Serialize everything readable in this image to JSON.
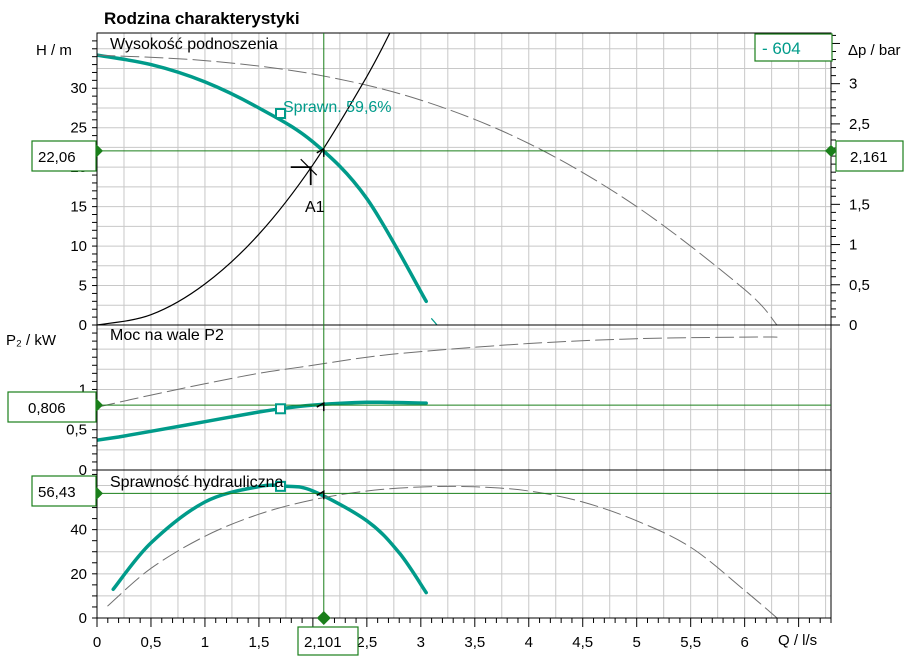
{
  "title": "Rodzina charakterystyki",
  "colors": {
    "pump_curve": "#009b8a",
    "marker": "#1a7f1a",
    "box_border": "#1a7f1a",
    "grid": "#c8c8c8",
    "dashed": "#707070",
    "system": "#000000",
    "label_teal": "#009b8a"
  },
  "readouts": {
    "head_left": "22,06",
    "dp_right": "2,161",
    "power_left": "0,806",
    "eff_left": "56,43",
    "flow_bottom": "2,101",
    "pump_id": "- 604"
  },
  "annotations": {
    "efficiency_label": "Sprawn.  59,6%",
    "operating_point": "A1"
  },
  "chart_data": [
    {
      "type": "line",
      "title": "Wysokość podnoszenia",
      "xlabel": "Q / l/s",
      "ylabel": "H / m",
      "y2label": "Δp / bar",
      "xlim": [
        0,
        6.8
      ],
      "ylim": [
        0,
        37
      ],
      "y2lim": [
        0,
        3.63
      ],
      "x_ticks": [
        "0",
        "0,5",
        "1",
        "1,5",
        "2",
        "2,5",
        "3",
        "3,5",
        "4",
        "4,5",
        "5",
        "5,5",
        "6"
      ],
      "y_ticks": [
        "0",
        "5",
        "10",
        "15",
        "20",
        "25",
        "30"
      ],
      "y_tick_values": [
        0,
        5,
        10,
        15,
        20,
        25,
        30
      ],
      "y2_ticks": [
        "0",
        "0,5",
        "1",
        "1,5",
        "2",
        "2,5",
        "3"
      ],
      "y2_tick_values": [
        0,
        0.5,
        1,
        1.5,
        2,
        2.5,
        3
      ],
      "grid": true,
      "series": [
        {
          "x": [
            0,
            0.5,
            1.0,
            1.5,
            2.0,
            2.5,
            3.05
          ],
          "y": [
            34.2,
            33.0,
            30.8,
            27.5,
            23.2,
            16.0,
            3.0
          ]
        },
        {
          "x": [
            3.1,
            3.15
          ],
          "y": [
            0.8,
            0
          ]
        },
        {
          "x": [
            0,
            1,
            2,
            3,
            4,
            5,
            6,
            6.3
          ],
          "y": [
            34.2,
            33.5,
            31.8,
            28.5,
            23.0,
            15.0,
            4.5,
            0
          ]
        },
        {
          "x": [
            0,
            0.5,
            1.0,
            1.5,
            2.0,
            2.5,
            2.75
          ],
          "y": [
            0,
            1.3,
            5.2,
            11.5,
            20.3,
            31.5,
            38.0
          ]
        }
      ],
      "points": [
        {
          "x": 1.7,
          "y": 26.8,
          "kind": "square"
        },
        {
          "x": 2.101,
          "y": 22.06,
          "kind": "operating"
        }
      ]
    },
    {
      "type": "line",
      "title": "Moc na wale P2",
      "ylabel": "P₂ / kW",
      "xlim": [
        0,
        6.8
      ],
      "ylim": [
        0,
        1.8
      ],
      "y_ticks": [
        "0",
        "0,5",
        "1"
      ],
      "y_tick_values": [
        0,
        0.5,
        1
      ],
      "grid": true,
      "series": [
        {
          "x": [
            0,
            0.2,
            0.5,
            1.0,
            1.5,
            1.7,
            2.0,
            2.5,
            3.05
          ],
          "y": [
            0.37,
            0.41,
            0.48,
            0.6,
            0.72,
            0.76,
            0.806,
            0.84,
            0.83
          ]
        },
        {
          "x": [
            0,
            0.5,
            1,
            1.5,
            2,
            2.5,
            3,
            4,
            5,
            6,
            6.3
          ],
          "y": [
            0.78,
            0.93,
            1.07,
            1.2,
            1.3,
            1.4,
            1.47,
            1.57,
            1.63,
            1.65,
            1.65
          ]
        }
      ],
      "points": [
        {
          "x": 1.7,
          "y": 0.76,
          "kind": "square"
        },
        {
          "x": 2.101,
          "y": 0.806,
          "kind": "operating"
        }
      ]
    },
    {
      "type": "line",
      "title": "Sprawność hydrauliczna",
      "xlim": [
        0,
        6.8
      ],
      "ylim": [
        0,
        67
      ],
      "y_ticks": [
        "0",
        "20",
        "40"
      ],
      "y_tick_values": [
        0,
        20,
        40
      ],
      "grid": true,
      "series": [
        {
          "x": [
            0.15,
            0.5,
            1.0,
            1.5,
            1.75,
            2.0,
            2.5,
            2.8,
            3.05
          ],
          "y": [
            13.0,
            34.0,
            52.5,
            59.5,
            59.6,
            57.5,
            44.0,
            29.5,
            11.5
          ]
        },
        {
          "x": [
            0.1,
            0.5,
            1.0,
            1.5,
            2.0,
            2.5,
            3.0,
            3.5,
            4.0,
            4.5,
            5.0,
            5.5,
            6.0,
            6.3
          ],
          "y": [
            5.5,
            22.5,
            37.0,
            47.0,
            53.5,
            57.5,
            59.3,
            59.4,
            57.5,
            52.5,
            44.0,
            32.0,
            12.5,
            0
          ]
        }
      ],
      "points": [
        {
          "x": 1.7,
          "y": 59.6,
          "kind": "square"
        },
        {
          "x": 2.101,
          "y": 56.43,
          "kind": "operating"
        }
      ]
    }
  ]
}
